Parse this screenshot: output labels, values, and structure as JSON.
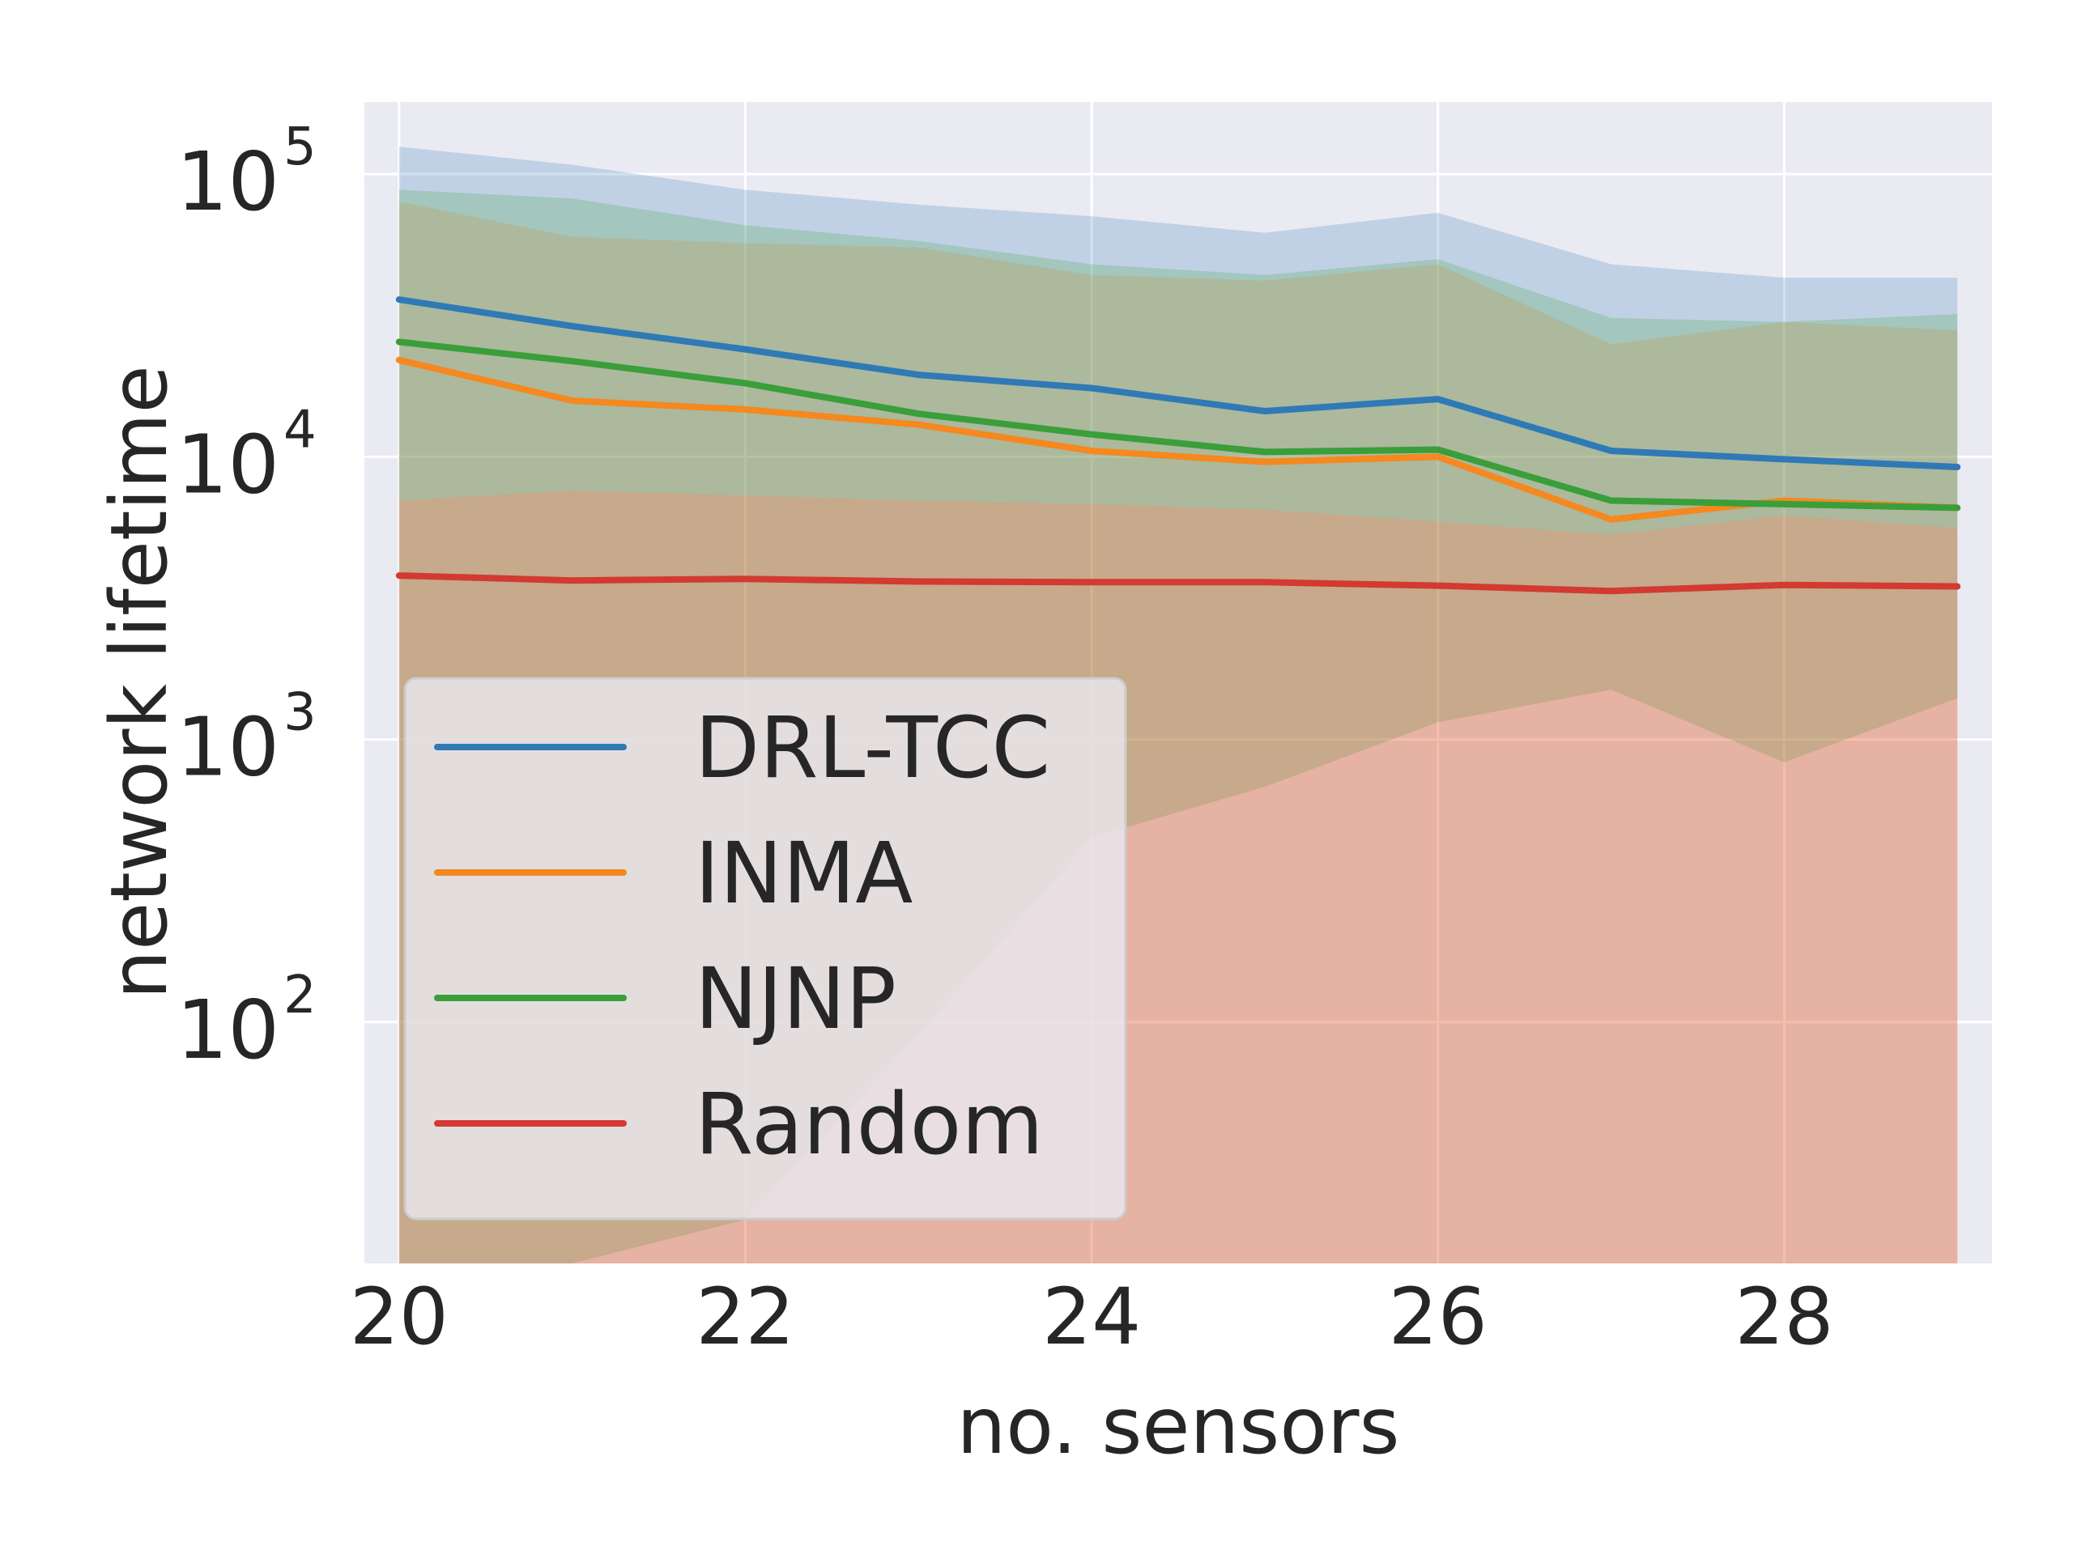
{
  "chart_data": {
    "type": "line",
    "xlabel": "no. sensors",
    "ylabel": "network lifetime",
    "yscale": "log",
    "xlim": [
      19.8,
      29.2
    ],
    "ylim": [
      14,
      180000
    ],
    "x_ticks": [
      20,
      22,
      24,
      26,
      28
    ],
    "y_ticks": [
      {
        "value": 100,
        "base": "10",
        "exp": "2"
      },
      {
        "value": 1000,
        "base": "10",
        "exp": "3"
      },
      {
        "value": 10000,
        "base": "10",
        "exp": "4"
      },
      {
        "value": 100000,
        "base": "10",
        "exp": "5"
      }
    ],
    "grid": true,
    "legend_position": "lower-left",
    "x": [
      20,
      21,
      22,
      23,
      24,
      25,
      26,
      27,
      28,
      29
    ],
    "series": [
      {
        "name": "DRL-TCC",
        "color": "#2f7ab5",
        "values": [
          36000,
          29000,
          24000,
          19500,
          17500,
          14500,
          16000,
          10500,
          9800,
          9200
        ],
        "band_upper": [
          125000,
          108000,
          88000,
          78000,
          71000,
          62000,
          73000,
          48000,
          43000,
          43000
        ],
        "band_lower": [
          7000,
          7600,
          7300,
          7000,
          6800,
          6500,
          5900,
          5300,
          6200,
          5600
        ]
      },
      {
        "name": "INMA",
        "color": "#f5881f",
        "values": [
          22000,
          15800,
          14700,
          13000,
          10500,
          9600,
          10000,
          6000,
          7000,
          6600
        ],
        "band_upper": [
          80000,
          60000,
          57000,
          55000,
          44000,
          42000,
          48000,
          25000,
          30000,
          28000
        ],
        "band_lower": [
          14,
          14,
          14,
          14,
          14,
          14,
          14,
          14,
          14,
          14
        ]
      },
      {
        "name": "NJNP",
        "color": "#3a9e3a",
        "values": [
          25500,
          21800,
          18200,
          14200,
          12000,
          10400,
          10600,
          7000,
          6800,
          6600
        ],
        "band_upper": [
          88000,
          82000,
          66000,
          58000,
          48000,
          44000,
          50000,
          31000,
          30000,
          32000
        ],
        "band_lower": [
          14,
          14,
          20,
          90,
          450,
          680,
          1150,
          1500,
          830,
          1400
        ]
      },
      {
        "name": "Random",
        "color": "#d23a32",
        "values": [
          3800,
          3650,
          3700,
          3620,
          3600,
          3600,
          3500,
          3350,
          3520,
          3480
        ],
        "band_upper": [
          7000,
          7600,
          7300,
          7000,
          6800,
          6500,
          5900,
          5300,
          6200,
          5600
        ],
        "band_lower": [
          14,
          14,
          14,
          14,
          14,
          14,
          14,
          14,
          14,
          14
        ]
      }
    ]
  }
}
